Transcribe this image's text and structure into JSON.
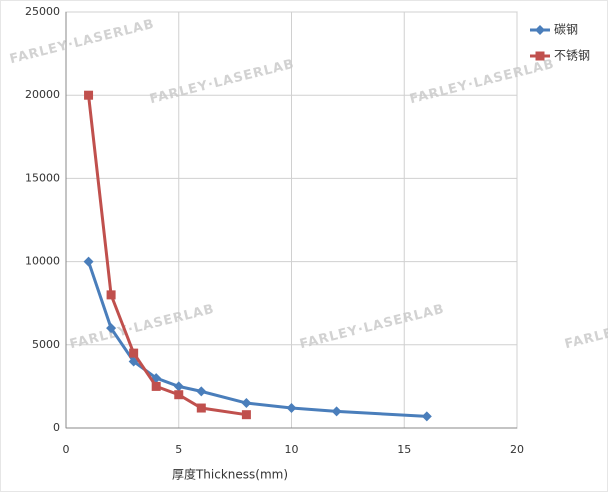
{
  "chart_data": {
    "type": "line",
    "watermark": "FARLEY·LASERLAB",
    "xlabel": "厚度Thickness(mm)",
    "xlim": [
      0,
      20
    ],
    "xticks": [
      0,
      5,
      10,
      15,
      20
    ],
    "ylim": [
      0,
      25000
    ],
    "yticks": [
      0,
      5000,
      10000,
      15000,
      20000,
      25000
    ],
    "grid": true,
    "legend": "right",
    "series": [
      {
        "name": "碳钢",
        "color": "#4a7ebb",
        "marker": "diamond",
        "x": [
          1,
          2,
          3,
          4,
          5,
          6,
          8,
          10,
          12,
          16
        ],
        "values": [
          10000,
          6000,
          4000,
          3000,
          2500,
          2200,
          1500,
          1200,
          1000,
          700
        ]
      },
      {
        "name": "不锈钢",
        "color": "#c0504d",
        "marker": "square",
        "x": [
          1,
          2,
          3,
          4,
          5,
          6,
          8
        ],
        "values": [
          20000,
          8000,
          4500,
          2500,
          2000,
          1200,
          800
        ]
      }
    ]
  }
}
